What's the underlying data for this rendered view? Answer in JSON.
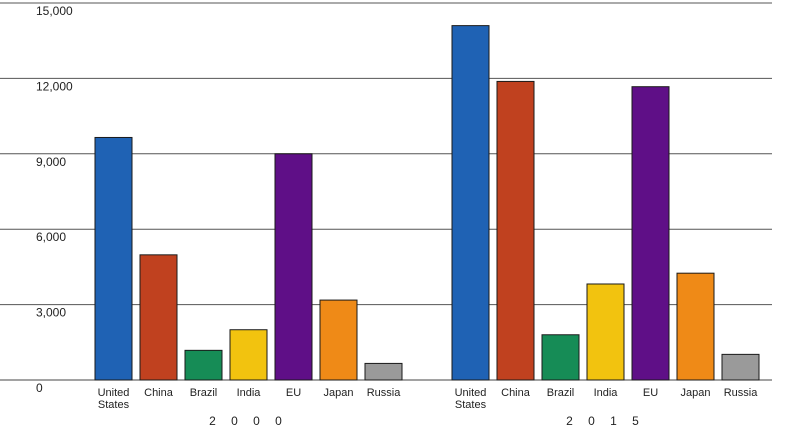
{
  "chart_data": {
    "type": "bar",
    "title": "",
    "xlabel": "",
    "ylabel": "",
    "ylim": [
      0,
      15000
    ],
    "yticks": [
      0,
      3000,
      6000,
      9000,
      12000,
      15000
    ],
    "ytick_labels": [
      "0",
      "3,000",
      "6,000",
      "9,000",
      "12,000",
      "15,000"
    ],
    "grid": true,
    "categories": [
      "United States",
      "China",
      "Brazil",
      "India",
      "EU",
      "Japan",
      "Russia"
    ],
    "category_label_lines": [
      [
        "United",
        "States"
      ],
      [
        "China"
      ],
      [
        "Brazil"
      ],
      [
        "India"
      ],
      [
        "EU"
      ],
      [
        "Japan"
      ],
      [
        "Russia"
      ]
    ],
    "colors": [
      "#1f62b4",
      "#c0411f",
      "#168c56",
      "#f2c30f",
      "#5f0f87",
      "#ef8a17",
      "#9a9a9a"
    ],
    "groups": [
      {
        "label": "2000",
        "values": [
          9650,
          4980,
          1180,
          2000,
          9000,
          3180,
          660
        ]
      },
      {
        "label": "2015",
        "values": [
          14100,
          11880,
          1800,
          3820,
          11670,
          4250,
          1020
        ]
      }
    ]
  }
}
